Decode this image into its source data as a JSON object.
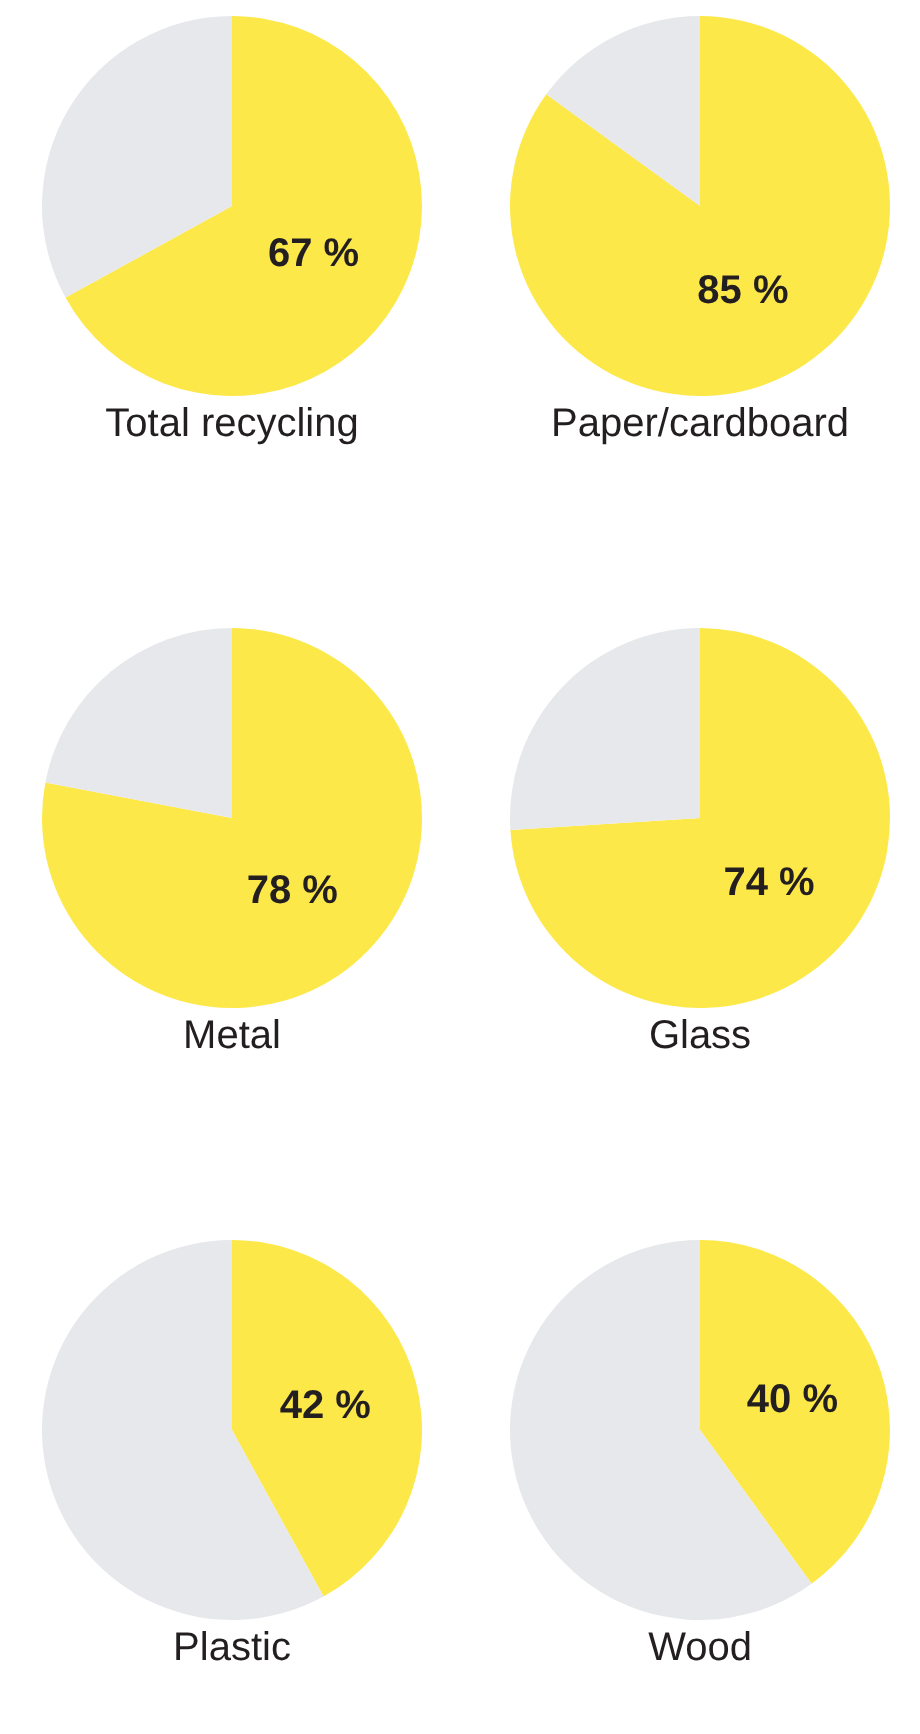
{
  "chart_data": [
    {
      "type": "pie",
      "title": "Total recycling",
      "categories": [
        null,
        null
      ],
      "values": [
        67,
        33
      ],
      "colors": [
        "#fde84a",
        "#e6e8eb"
      ],
      "value_labels": [
        "67 %",
        null
      ]
    },
    {
      "type": "pie",
      "title": "Paper/cardboard",
      "categories": [
        null,
        null
      ],
      "values": [
        85,
        15
      ],
      "colors": [
        "#fde84a",
        "#e6e8eb"
      ],
      "value_labels": [
        "85 %",
        null
      ]
    },
    {
      "type": "pie",
      "title": "Metal",
      "categories": [
        null,
        null
      ],
      "values": [
        78,
        22
      ],
      "colors": [
        "#fde84a",
        "#e6e8eb"
      ],
      "value_labels": [
        "78 %",
        null
      ]
    },
    {
      "type": "pie",
      "title": "Glass",
      "categories": [
        null,
        null
      ],
      "values": [
        74,
        26
      ],
      "colors": [
        "#fde84a",
        "#e6e8eb"
      ],
      "value_labels": [
        "74 %",
        null
      ]
    },
    {
      "type": "pie",
      "title": "Plastic",
      "categories": [
        null,
        null
      ],
      "values": [
        42,
        58
      ],
      "colors": [
        "#fde84a",
        "#e6e8eb"
      ],
      "value_labels": [
        "42 %",
        null
      ]
    },
    {
      "type": "pie",
      "title": "Wood",
      "categories": [
        null,
        null
      ],
      "values": [
        40,
        60
      ],
      "colors": [
        "#fde84a",
        "#e6e8eb"
      ],
      "value_labels": [
        "40 %",
        null
      ]
    }
  ]
}
